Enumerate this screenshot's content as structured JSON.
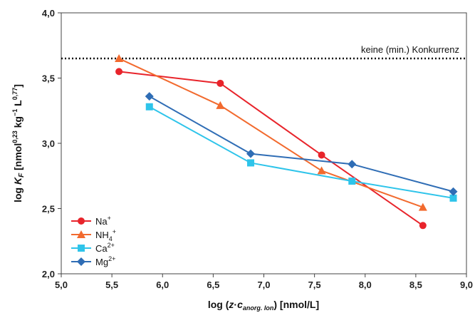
{
  "chart_data": {
    "type": "line",
    "xlim": [
      5.0,
      9.0
    ],
    "ylim": [
      2.0,
      4.0
    ],
    "xticks": [
      "5,0",
      "5,5",
      "6,0",
      "6,5",
      "7,0",
      "7,5",
      "8,0",
      "8,5",
      "9,0"
    ],
    "yticks": [
      "2,0",
      "2,5",
      "3,0",
      "3,5",
      "4,0"
    ],
    "xlabel": {
      "pre": "log (",
      "z": "z",
      "dot": "·",
      "c": "c",
      "sub": "anorg. Ion",
      "post": ")  [nmol/L]"
    },
    "ylabel": {
      "pre": "log ",
      "K": "K",
      "Ksub": "F",
      "mid": " [nmol",
      "sup1": "0,23",
      "mid2": " kg",
      "sup2": "−1",
      "mid3": " L",
      "sup3": "0,77",
      "post": "]"
    },
    "reference_line": {
      "y": 3.65,
      "style": "dotted",
      "label": "keine (min.) Konkurrenz"
    },
    "grid": false,
    "legend_position": "bottom-left",
    "series": [
      {
        "name_base": "Na",
        "name_sub": "",
        "name_sup": "+",
        "color": "#e8242b",
        "marker": "circle",
        "x": [
          5.57,
          6.57,
          7.57,
          8.57
        ],
        "y": [
          3.55,
          3.46,
          2.91,
          2.37
        ]
      },
      {
        "name_base": "NH",
        "name_sub": "4",
        "name_sup": "+",
        "color": "#f26a2e",
        "marker": "triangle",
        "x": [
          5.57,
          6.57,
          7.57,
          8.57
        ],
        "y": [
          3.65,
          3.29,
          2.79,
          2.51
        ]
      },
      {
        "name_base": "Ca",
        "name_sub": "",
        "name_sup": "2+",
        "color": "#2ec4ea",
        "marker": "square",
        "x": [
          5.87,
          6.87,
          7.87,
          8.87
        ],
        "y": [
          3.28,
          2.85,
          2.71,
          2.58
        ]
      },
      {
        "name_base": "Mg",
        "name_sub": "",
        "name_sup": "2+",
        "color": "#2f6db5",
        "marker": "diamond",
        "x": [
          5.87,
          6.87,
          7.87,
          8.87
        ],
        "y": [
          3.36,
          2.92,
          2.84,
          2.63
        ]
      }
    ]
  }
}
